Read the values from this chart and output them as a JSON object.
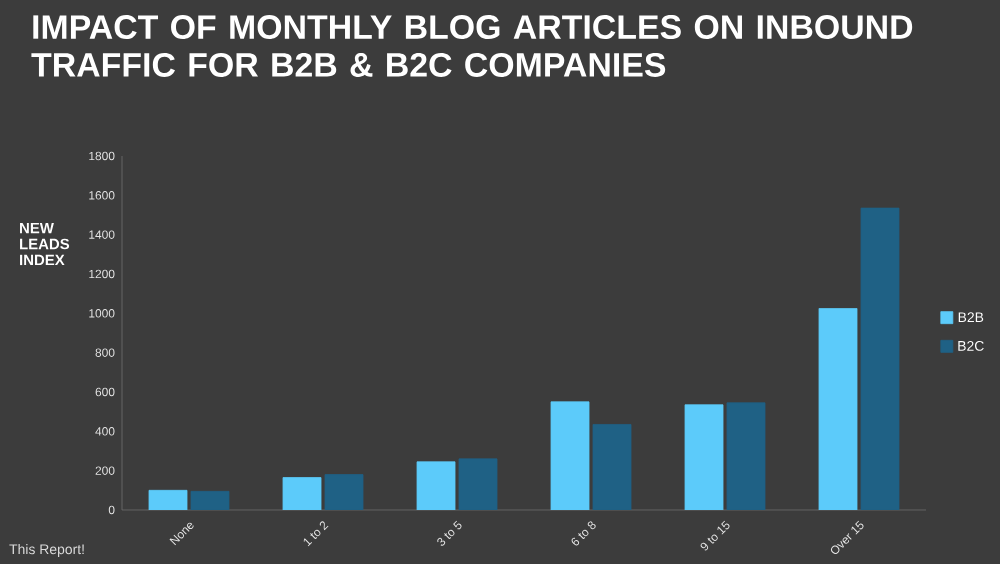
{
  "chart_data": {
    "type": "bar",
    "title": "IMPACT OF MONTHLY BLOG ARTICLES ON INBOUND TRAFFIC FOR B2B & B2C COMPANIES",
    "ylabel": "NEW LEADS INDEX",
    "categories": [
      "None",
      "1 to 2",
      "3 to 5",
      "6 to 8",
      "9 to 15",
      "Over 15"
    ],
    "series": [
      {
        "name": "B2B",
        "color": "#5ccbfa",
        "values": [
          100,
          165,
          245,
          550,
          535,
          1025
        ]
      },
      {
        "name": "B2C",
        "color": "#1f6185",
        "values": [
          95,
          180,
          260,
          435,
          545,
          1535
        ]
      }
    ],
    "ylim": [
      0,
      1800
    ],
    "yticks": [
      0,
      200,
      400,
      600,
      800,
      1000,
      1200,
      1400,
      1600,
      1800
    ],
    "legend": "right",
    "annotations": [
      "This Report!"
    ]
  }
}
